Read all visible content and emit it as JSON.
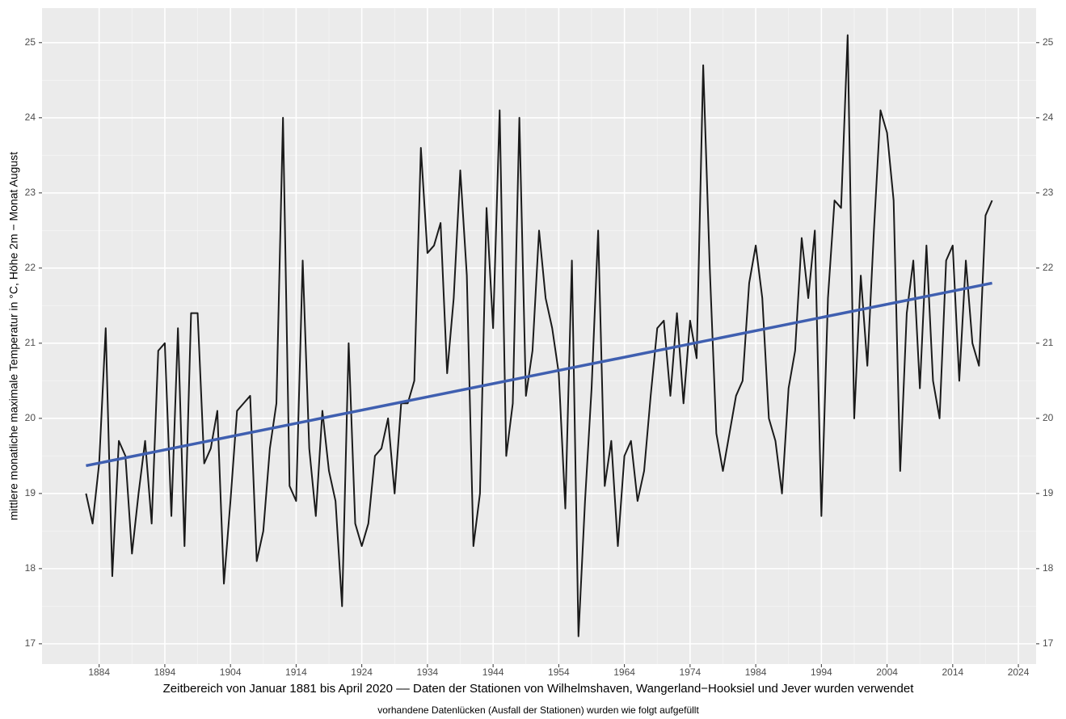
{
  "chart_data": {
    "type": "line",
    "y_label": "mittlere monatliche  maximale Temperatur in °C, Höhe 2m − Monat August",
    "caption": "Zeitbereich von Januar 1881 bis April 2020  ‒‒   Daten der Stationen von  Wilhelmshaven, Wangerland−Hooksiel und Jever wurden verwendet",
    "subcaption": "vorhandene Datenlücken (Ausfall der Stationen) wurden wie folgt aufgefüllt",
    "x": [
      1882,
      1883,
      1884,
      1885,
      1886,
      1887,
      1888,
      1889,
      1890,
      1891,
      1892,
      1893,
      1894,
      1895,
      1896,
      1897,
      1898,
      1899,
      1900,
      1901,
      1902,
      1903,
      1904,
      1905,
      1906,
      1907,
      1908,
      1909,
      1910,
      1911,
      1912,
      1913,
      1914,
      1915,
      1916,
      1917,
      1918,
      1919,
      1920,
      1921,
      1922,
      1923,
      1924,
      1925,
      1926,
      1927,
      1928,
      1929,
      1930,
      1931,
      1932,
      1933,
      1934,
      1935,
      1936,
      1937,
      1938,
      1939,
      1940,
      1941,
      1942,
      1943,
      1944,
      1945,
      1946,
      1947,
      1948,
      1949,
      1950,
      1951,
      1952,
      1953,
      1954,
      1955,
      1956,
      1957,
      1958,
      1959,
      1960,
      1961,
      1962,
      1963,
      1964,
      1965,
      1966,
      1967,
      1968,
      1969,
      1970,
      1971,
      1972,
      1973,
      1974,
      1975,
      1976,
      1977,
      1978,
      1979,
      1980,
      1981,
      1982,
      1983,
      1984,
      1985,
      1986,
      1987,
      1988,
      1989,
      1990,
      1991,
      1992,
      1993,
      1994,
      1995,
      1996,
      1997,
      1998,
      1999,
      2000,
      2001,
      2002,
      2003,
      2004,
      2005,
      2006,
      2007,
      2008,
      2009,
      2010,
      2011,
      2012,
      2013,
      2014,
      2015,
      2016,
      2017,
      2018,
      2019,
      2020
    ],
    "series": [
      {
        "color": "#1a1a1a",
        "values": [
          19.0,
          18.6,
          19.4,
          21.2,
          17.9,
          19.7,
          19.5,
          18.2,
          19.0,
          19.7,
          18.6,
          20.9,
          21.0,
          18.7,
          21.2,
          18.3,
          21.4,
          21.4,
          19.4,
          19.6,
          20.1,
          17.8,
          18.9,
          20.1,
          20.2,
          20.3,
          18.1,
          18.5,
          19.6,
          20.2,
          24.0,
          19.1,
          18.9,
          22.1,
          19.6,
          18.7,
          20.1,
          19.3,
          18.9,
          17.5,
          21.0,
          18.6,
          18.3,
          18.6,
          19.5,
          19.6,
          20.0,
          19.0,
          20.2,
          20.2,
          20.5,
          23.6,
          22.2,
          22.3,
          22.6,
          20.6,
          21.6,
          23.3,
          21.9,
          18.3,
          19.0,
          22.8,
          21.2,
          24.1,
          19.5,
          20.2,
          24.0,
          20.3,
          20.9,
          22.5,
          21.6,
          21.2,
          20.6,
          18.8,
          22.1,
          17.1,
          18.9,
          20.4,
          22.5,
          19.1,
          19.7,
          18.3,
          19.5,
          19.7,
          18.9,
          19.3,
          20.3,
          21.2,
          21.3,
          20.3,
          21.4,
          20.2,
          21.3,
          20.8,
          24.7,
          22.0,
          19.8,
          19.3,
          19.8,
          20.3,
          20.5,
          21.8,
          22.3,
          21.6,
          20.0,
          19.7,
          19.0,
          20.4,
          20.9,
          22.4,
          21.6,
          22.5,
          18.7,
          21.6,
          22.9,
          22.8,
          25.1,
          20.0,
          21.9,
          20.7,
          22.5,
          24.1,
          23.8,
          22.9,
          19.3,
          21.4,
          22.1,
          20.4,
          22.3,
          20.5,
          20.0,
          22.1,
          22.3,
          20.5,
          22.1,
          21.0,
          20.7,
          22.7,
          22.9
        ]
      },
      {
        "color": "#3f5fb0",
        "x": [
          1882,
          2020
        ],
        "values": [
          19.37,
          21.8
        ]
      }
    ],
    "xlim": [
      1875.3,
      2026.7
    ],
    "ylim": [
      16.73,
      25.46
    ],
    "xticks": [
      1884,
      1894,
      1904,
      1914,
      1924,
      1934,
      1944,
      1954,
      1964,
      1974,
      1984,
      1994,
      2004,
      2014,
      2024
    ],
    "yticks": [
      17,
      18,
      19,
      20,
      21,
      22,
      23,
      24,
      25
    ],
    "y2lim": [
      16.73,
      25.46
    ],
    "y2ticks": [
      17,
      18,
      19,
      20,
      21,
      22,
      23,
      24,
      25
    ],
    "grid": true,
    "minor_grid": true
  }
}
